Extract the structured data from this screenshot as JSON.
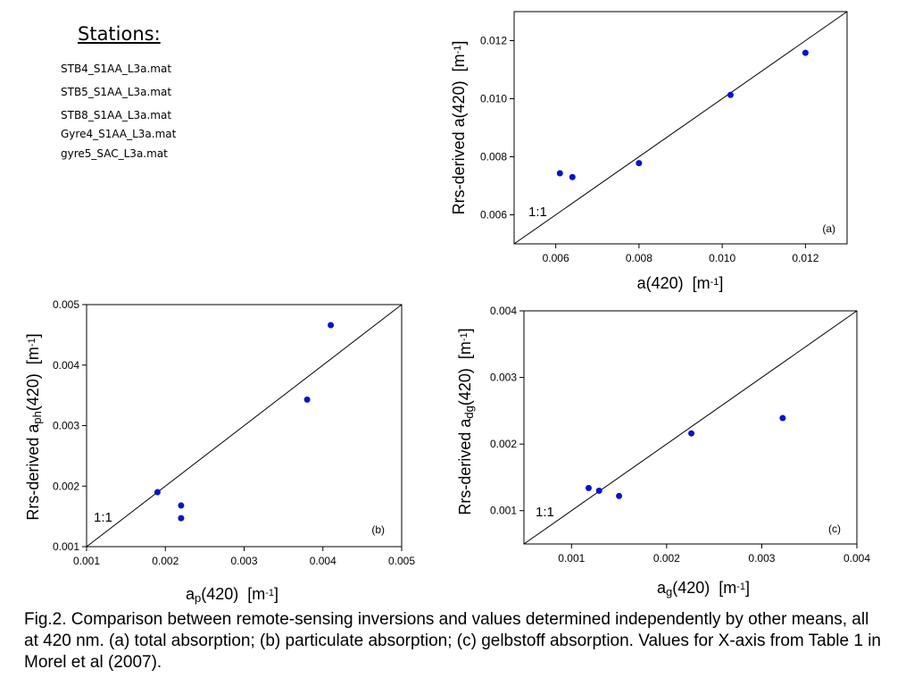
{
  "stations": {
    "title": "Stations:",
    "items": [
      "STB4_S1AA_L3a.mat",
      "STB5_S1AA_L3a.mat",
      "STB8_S1AA_L3a.mat",
      "Gyre4_S1AA_L3a.mat",
      "gyre5_SAC_L3a.mat"
    ]
  },
  "caption": "Fig.2. Comparison between remote-sensing inversions and values determined independently by other means, all at 420 nm. (a) total absorption; (b) particulate absorption; (c) gelbstoff absorption. Values for X-axis from Table 1 in Morel et al (2007).",
  "colors": {
    "points": "#0a12c8",
    "axis": "#000000"
  },
  "chart_data": [
    {
      "type": "scatter",
      "panel_label": "(a)",
      "line_label": "1:1",
      "xlabel": {
        "base": "a(420)",
        "sub": "",
        "unit": "[m",
        "sup": "-1",
        "close": "]"
      },
      "ylabel": {
        "base": "Rrs-derived a(420)",
        "sub": "",
        "unit": "[m",
        "sup": "-1",
        "close": "]"
      },
      "xlim": [
        0.005,
        0.013
      ],
      "ylim": [
        0.005,
        0.013
      ],
      "xticks": [
        0.006,
        0.008,
        0.01,
        0.012
      ],
      "yticks": [
        0.006,
        0.008,
        0.01,
        0.012
      ],
      "tick_labels_x": [
        "0.006",
        "0.008",
        "0.010",
        "0.012"
      ],
      "tick_labels_y": [
        "0.006",
        "0.008",
        "0.010",
        "0.012"
      ],
      "points": [
        [
          0.0061,
          0.00743
        ],
        [
          0.0064,
          0.0073
        ],
        [
          0.008,
          0.00778
        ],
        [
          0.0102,
          0.01013
        ],
        [
          0.012,
          0.01158
        ]
      ],
      "identity_line": true
    },
    {
      "type": "scatter",
      "panel_label": "(b)",
      "line_label": "1:1",
      "xlabel": {
        "base": "a",
        "sub": "p",
        "rest": "(420)",
        "unit": "[m",
        "sup": "-1",
        "close": "]"
      },
      "ylabel": {
        "base": "Rrs-derived a",
        "sub": "ph",
        "rest": "(420)",
        "unit": "[m",
        "sup": "-1",
        "close": "]"
      },
      "xlim": [
        0.001,
        0.005
      ],
      "ylim": [
        0.001,
        0.005
      ],
      "xticks": [
        0.001,
        0.002,
        0.003,
        0.004,
        0.005
      ],
      "yticks": [
        0.001,
        0.002,
        0.003,
        0.004,
        0.005
      ],
      "tick_labels_x": [
        "0.001",
        "0.002",
        "0.003",
        "0.004",
        "0.005"
      ],
      "tick_labels_y": [
        "0.001",
        "0.002",
        "0.003",
        "0.004",
        "0.005"
      ],
      "points": [
        [
          0.0019,
          0.0019
        ],
        [
          0.0022,
          0.00168
        ],
        [
          0.0022,
          0.00147
        ],
        [
          0.0038,
          0.00343
        ],
        [
          0.0041,
          0.00466
        ]
      ],
      "identity_line": true
    },
    {
      "type": "scatter",
      "panel_label": "(c)",
      "line_label": "1:1",
      "xlabel": {
        "base": "a",
        "sub": "g",
        "rest": "(420)",
        "unit": "[m",
        "sup": "-1",
        "close": "]"
      },
      "ylabel": {
        "base": "Rrs-derived a",
        "sub": "dg",
        "rest": "(420)",
        "unit": "[m",
        "sup": "-1",
        "close": "]"
      },
      "xlim": [
        0.0005,
        0.004
      ],
      "ylim": [
        0.0005,
        0.004
      ],
      "xticks": [
        0.001,
        0.002,
        0.003,
        0.004
      ],
      "yticks": [
        0.001,
        0.002,
        0.003,
        0.004
      ],
      "tick_labels_x": [
        "0.001",
        "0.002",
        "0.003",
        "0.004"
      ],
      "tick_labels_y": [
        "0.001",
        "0.002",
        "0.003",
        "0.004"
      ],
      "points": [
        [
          0.00118,
          0.00134
        ],
        [
          0.00129,
          0.0013
        ],
        [
          0.0015,
          0.00122
        ],
        [
          0.00226,
          0.00216
        ],
        [
          0.00322,
          0.00239
        ]
      ],
      "identity_line": true
    }
  ]
}
